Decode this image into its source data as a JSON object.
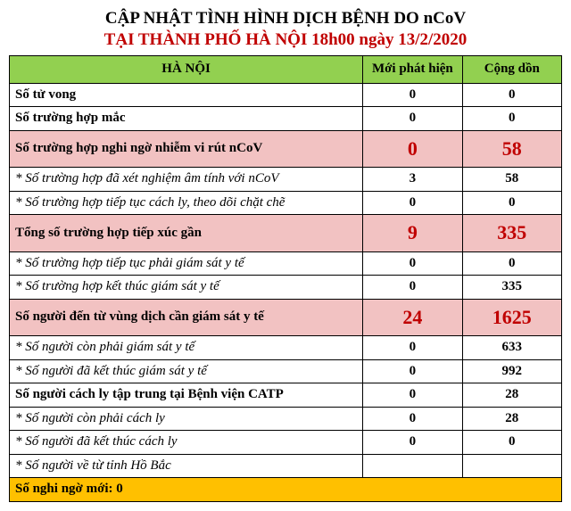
{
  "title": {
    "line1": "CẬP NHẬT TÌNH HÌNH DỊCH BỆNH DO nCoV",
    "line2_red_a": "TẠI THÀNH PHỐ HÀ NỘI",
    "line2_red_b": "18h00 ngày 13/2/2020"
  },
  "header": {
    "col_label": "HÀ NỘI",
    "col_new": "Mới phát hiện",
    "col_total": "Cộng dồn"
  },
  "rows": [
    {
      "type": "normal",
      "label": "Số tử vong",
      "new": "0",
      "total": "0"
    },
    {
      "type": "normal",
      "label": "Số trường hợp mắc",
      "new": "0",
      "total": "0"
    },
    {
      "type": "pink",
      "label": "Số trường hợp nghi ngờ nhiễm vi rút nCoV",
      "new": "0",
      "total": "58"
    },
    {
      "type": "sub",
      "label": "* Số trường hợp đã xét nghiệm âm tính với nCoV",
      "new": "3",
      "total": "58"
    },
    {
      "type": "sub",
      "label": "* Số trường hợp tiếp tục cách ly, theo dõi chặt chẽ",
      "new": "0",
      "total": "0"
    },
    {
      "type": "pink",
      "label": "Tổng số trường hợp tiếp xúc gần",
      "new": "9",
      "total": "335"
    },
    {
      "type": "sub",
      "label": "* Số trường hợp tiếp tục phải giám sát y tế",
      "new": "0",
      "total": "0"
    },
    {
      "type": "sub",
      "label": "* Số trường hợp kết thúc giám sát y tế",
      "new": "0",
      "total": "335"
    },
    {
      "type": "pink",
      "label": "Số người đến từ vùng dịch cần giám sát y tế",
      "new": "24",
      "total": "1625"
    },
    {
      "type": "sub",
      "label": "* Số người còn phải giám sát y tế",
      "new": "0",
      "total": "633"
    },
    {
      "type": "sub",
      "label": "* Số người đã kết thúc giám sát y tế",
      "new": "0",
      "total": "992"
    },
    {
      "type": "normal",
      "label": "Số người cách ly tập trung tại Bệnh viện CATP",
      "new": "0",
      "total": "28"
    },
    {
      "type": "sub",
      "label": "* Số người còn phải cách ly",
      "new": "0",
      "total": "28"
    },
    {
      "type": "sub",
      "label": "* Số người đã kết thúc cách ly",
      "new": "0",
      "total": "0"
    },
    {
      "type": "sub",
      "label": "* Số người về từ tỉnh Hồ Bắc",
      "new": "",
      "total": ""
    }
  ],
  "footer": {
    "label": "Số nghi ngờ mới: 0"
  },
  "colors": {
    "header_bg": "#92d050",
    "pink_bg": "#f2c2c2",
    "yellow_bg": "#ffc000",
    "red_text": "#c00000"
  }
}
